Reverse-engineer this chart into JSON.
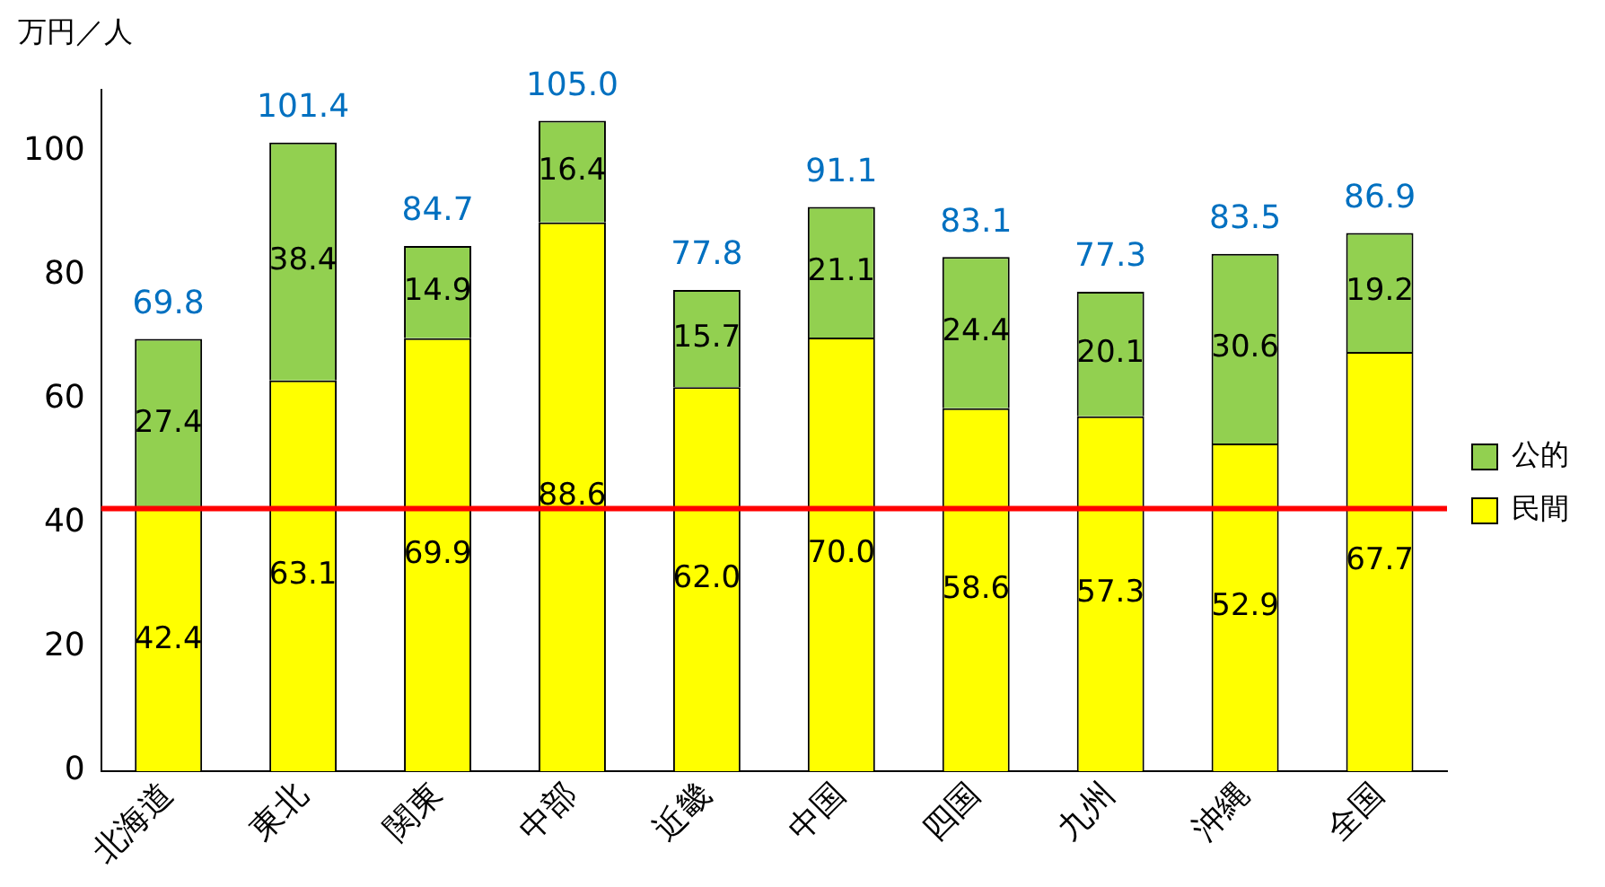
{
  "chart_data": {
    "type": "bar",
    "stacked": true,
    "ylabel": "万円／人",
    "categories": [
      "北海道",
      "東北",
      "関東",
      "中部",
      "近畿",
      "中国",
      "四国",
      "九州",
      "沖縄",
      "全国"
    ],
    "series": [
      {
        "name": "民間",
        "color": "#ffff00",
        "values": [
          42.4,
          63.1,
          69.9,
          88.6,
          62.0,
          70.0,
          58.6,
          57.3,
          52.9,
          67.7
        ],
        "value_labels": [
          "42.4",
          "63.1",
          "69.9",
          "88.6",
          "62.0",
          "70.0",
          "58.6",
          "57.3",
          "52.9",
          "67.7"
        ]
      },
      {
        "name": "公的",
        "color": "#92d050",
        "values": [
          27.4,
          38.4,
          14.9,
          16.4,
          15.7,
          21.1,
          24.4,
          20.1,
          30.6,
          19.2
        ],
        "value_labels": [
          "27.4",
          "38.4",
          "14.9",
          "16.4",
          "15.7",
          "21.1",
          "24.4",
          "20.1",
          "30.6",
          "19.2"
        ]
      }
    ],
    "totals": [
      "69.8",
      "101.4",
      "84.7",
      "105.0",
      "77.8",
      "91.1",
      "83.1",
      "77.3",
      "83.5",
      "86.9"
    ],
    "ylim": [
      0,
      110
    ],
    "yticks": [
      0,
      20,
      40,
      60,
      80,
      100
    ],
    "ref_lines": [
      {
        "axis": "y",
        "value": 42.4,
        "color": "#ff0000"
      }
    ],
    "grid": false,
    "legend": "right"
  }
}
